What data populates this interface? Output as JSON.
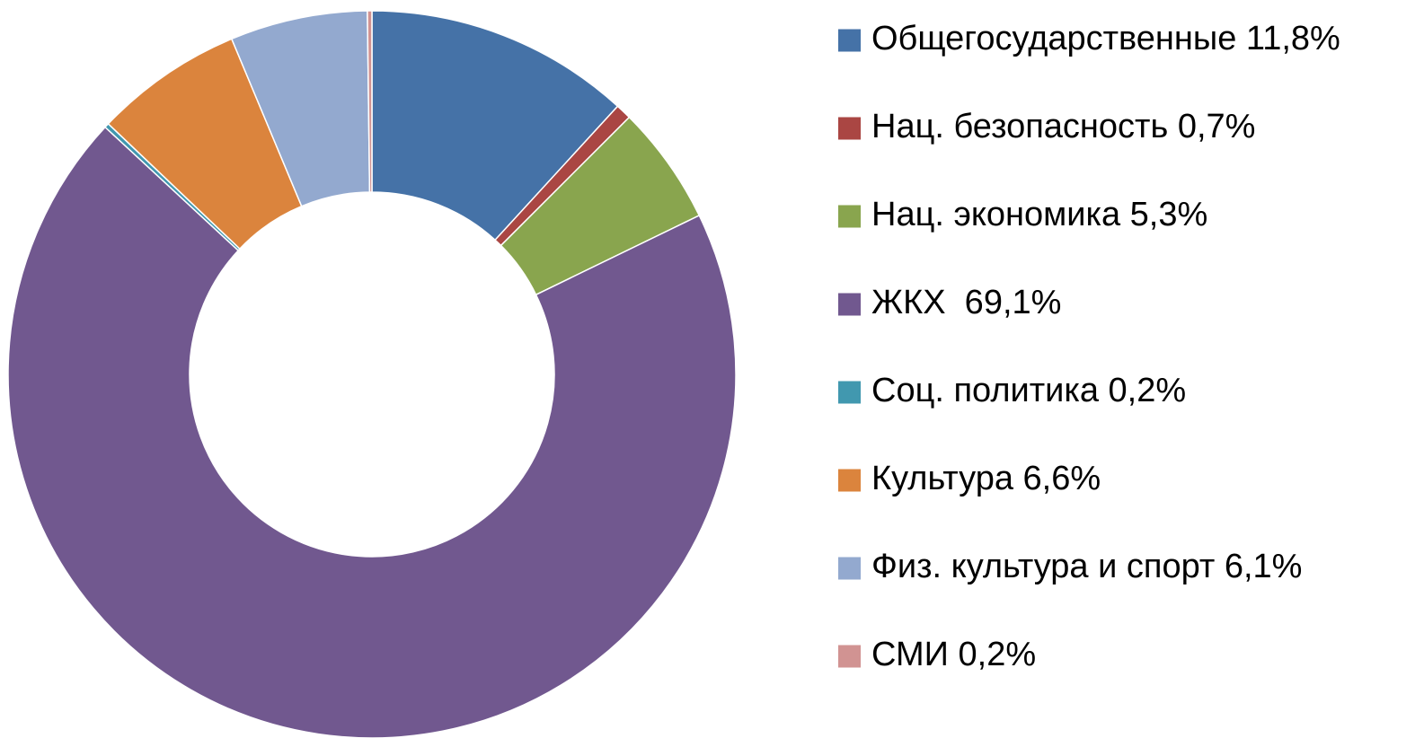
{
  "chart_data": {
    "type": "doughnut",
    "categories": [
      "Общегосударственные 11,8%",
      "Нац. безопасность 0,7%",
      "Нац. экономика 5,3%",
      "ЖКХ  69,1%",
      "Соц. политика 0,2%",
      "Культура 6,6%",
      "Физ. культура и спорт 6,1%",
      "СМИ 0,2%"
    ],
    "values": [
      11.8,
      0.7,
      5.3,
      69.1,
      0.2,
      6.6,
      6.1,
      0.2
    ],
    "colors": [
      "#4572a7",
      "#aa4643",
      "#89a54e",
      "#71588f",
      "#4198af",
      "#db843d",
      "#93a9cf",
      "#d19392"
    ],
    "legend": "right"
  }
}
